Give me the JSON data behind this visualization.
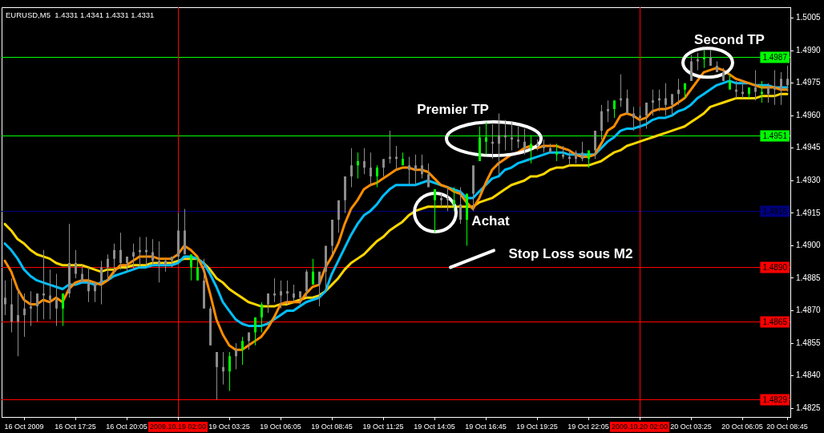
{
  "chart_data": {
    "type": "candlestick",
    "title": "EURUSD,M5  1.4331 1.4341 1.4331 1.4331",
    "categories": [
      null,
      null,
      null,
      "16 Oct 2009",
      null,
      null,
      null,
      null,
      null,
      null,
      null,
      "16 Oct 17:25",
      null,
      null,
      null,
      null,
      null,
      null,
      null,
      "16 Oct 20:05",
      null,
      null,
      null,
      null,
      null,
      null,
      null,
      "2009.10.19 02:00",
      null,
      null,
      null,
      null,
      null,
      null,
      null,
      "19 Oct 03:25",
      null,
      null,
      null,
      null,
      null,
      null,
      null,
      "19 Oct 06:05",
      null,
      null,
      null,
      null,
      null,
      null,
      null,
      "19 Oct 08:45",
      null,
      null,
      null,
      null,
      null,
      null,
      null,
      "19 Oct 11:25",
      null,
      null,
      null,
      null,
      null,
      null,
      null,
      "19 Oct 14:05",
      null,
      null,
      null,
      null,
      null,
      null,
      null,
      "19 Oct 16:45",
      null,
      null,
      null,
      null,
      null,
      null,
      null,
      "19 Oct 19:25",
      null,
      null,
      null,
      null,
      null,
      null,
      null,
      "19 Oct 22:05",
      null,
      null,
      null,
      null,
      null,
      null,
      null,
      "2009.10.20 02:00",
      null,
      null,
      null,
      null,
      null,
      null,
      null,
      "20 Oct 03:25",
      null,
      null,
      null,
      null,
      null,
      null,
      null,
      "20 Oct 06:05",
      null,
      null,
      null,
      null,
      null,
      null,
      "20 Oct 08:45"
    ],
    "ohlc": [
      [
        1.4876,
        1.4884,
        1.4868,
        1.4873
      ],
      [
        1.4873,
        1.4885,
        1.486,
        1.4865
      ],
      [
        1.4868,
        1.488,
        1.4849,
        1.4865
      ],
      [
        1.4871,
        1.4878,
        1.4858,
        1.4868
      ],
      [
        1.4872,
        1.4879,
        1.4863,
        1.4871
      ],
      [
        1.4878,
        1.4878,
        1.4865,
        1.4872
      ],
      [
        1.4878,
        1.4898,
        1.4866,
        1.4877
      ],
      [
        1.4877,
        1.4889,
        1.4866,
        1.4875
      ],
      [
        1.4875,
        1.4887,
        1.4863,
        1.4871
      ],
      [
        1.4871,
        1.4878,
        1.4863,
        1.4878
      ],
      [
        1.4892,
        1.491,
        1.4876,
        1.4878
      ],
      [
        1.4892,
        1.4898,
        1.4885,
        1.4887
      ],
      [
        1.4887,
        1.4891,
        1.4883,
        1.4883
      ],
      [
        1.4883,
        1.489,
        1.4874,
        1.4879
      ],
      [
        1.4883,
        1.4883,
        1.4874,
        1.4879
      ],
      [
        1.489,
        1.4893,
        1.4873,
        1.4883
      ],
      [
        1.4894,
        1.4896,
        1.4884,
        1.489
      ],
      [
        1.4898,
        1.4901,
        1.4887,
        1.4894
      ],
      [
        1.4898,
        1.4906,
        1.4889,
        1.4892
      ],
      [
        1.4895,
        1.4895,
        1.4888,
        1.4892
      ],
      [
        1.4897,
        1.4901,
        1.4889,
        1.4895
      ],
      [
        1.4898,
        1.4904,
        1.489,
        1.4897
      ],
      [
        1.4898,
        1.4904,
        1.4891,
        1.4897
      ],
      [
        1.4897,
        1.4903,
        1.4891,
        1.4893
      ],
      [
        1.4893,
        1.4902,
        1.4883,
        1.4891
      ],
      [
        1.4893,
        1.4894,
        1.4888,
        1.4891
      ],
      [
        1.4895,
        1.4895,
        1.489,
        1.4893
      ],
      [
        1.4907,
        1.4915,
        1.4893,
        1.4895
      ],
      [
        1.4907,
        1.4917,
        1.4896,
        1.4896
      ],
      [
        1.489,
        1.4896,
        1.4884,
        1.4896
      ],
      [
        1.4884,
        1.4895,
        1.4884,
        1.489
      ],
      [
        1.4884,
        1.4894,
        1.4871,
        1.4871
      ],
      [
        1.4871,
        1.4872,
        1.4854,
        1.4854
      ],
      [
        1.4851,
        1.4851,
        1.4829,
        1.4844
      ],
      [
        1.4844,
        1.4851,
        1.4836,
        1.4842
      ],
      [
        1.4842,
        1.4851,
        1.4833,
        1.4849
      ],
      [
        1.4852,
        1.4855,
        1.4843,
        1.4849
      ],
      [
        1.4852,
        1.4858,
        1.4845,
        1.4856
      ],
      [
        1.486,
        1.486,
        1.4852,
        1.4856
      ],
      [
        1.486,
        1.4867,
        1.4854,
        1.4867
      ],
      [
        1.4867,
        1.4874,
        1.486,
        1.4873
      ],
      [
        1.4878,
        1.4878,
        1.4869,
        1.4873
      ],
      [
        1.4878,
        1.4885,
        1.4874,
        1.4877
      ],
      [
        1.4879,
        1.4884,
        1.4871,
        1.4877
      ],
      [
        1.4879,
        1.4884,
        1.4873,
        1.4878
      ],
      [
        1.4878,
        1.4882,
        1.4874,
        1.4876
      ],
      [
        1.4879,
        1.4879,
        1.4873,
        1.4876
      ],
      [
        1.4888,
        1.4889,
        1.4876,
        1.4879
      ],
      [
        1.4882,
        1.4894,
        1.4882,
        1.4888
      ],
      [
        1.4888,
        1.4888,
        1.4872,
        1.4882
      ],
      [
        1.49,
        1.49,
        1.4879,
        1.4888
      ],
      [
        1.4912,
        1.4912,
        1.4896,
        1.49
      ],
      [
        1.4921,
        1.4921,
        1.4906,
        1.4912
      ],
      [
        1.4932,
        1.4932,
        1.4915,
        1.4921
      ],
      [
        1.4937,
        1.4945,
        1.4927,
        1.4932
      ],
      [
        1.4937,
        1.4943,
        1.4931,
        1.4939
      ],
      [
        1.4939,
        1.4945,
        1.4933,
        1.4936
      ],
      [
        1.4936,
        1.4943,
        1.4928,
        1.4932
      ],
      [
        1.4932,
        1.4937,
        1.4927,
        1.4936
      ],
      [
        1.494,
        1.494,
        1.4932,
        1.4936
      ],
      [
        1.4941,
        1.4953,
        1.4938,
        1.494
      ],
      [
        1.4941,
        1.4946,
        1.4935,
        1.494
      ],
      [
        1.4937,
        1.4943,
        1.4937,
        1.494
      ],
      [
        1.4937,
        1.4941,
        1.4928,
        1.4935
      ],
      [
        1.4937,
        1.4942,
        1.4928,
        1.4935
      ],
      [
        1.4937,
        1.4942,
        1.4931,
        1.4933
      ],
      [
        1.4933,
        1.4938,
        1.4927,
        1.4927
      ],
      [
        1.4921,
        1.4926,
        1.4906,
        1.4926
      ],
      [
        1.4922,
        1.4924,
        1.4918,
        1.4921
      ],
      [
        1.4922,
        1.4927,
        1.4916,
        1.4921
      ],
      [
        1.4919,
        1.4927,
        1.4916,
        1.4921
      ],
      [
        1.4919,
        1.4927,
        1.491,
        1.4912
      ],
      [
        1.4912,
        1.4924,
        1.49,
        1.4924
      ],
      [
        1.4937,
        1.4937,
        1.4916,
        1.4924
      ],
      [
        1.4939,
        1.4955,
        1.4939,
        1.495
      ],
      [
        1.4948,
        1.4957,
        1.4942,
        1.495
      ],
      [
        1.4948,
        1.4956,
        1.494,
        1.4947
      ],
      [
        1.4951,
        1.4961,
        1.4933,
        1.4947
      ],
      [
        1.4951,
        1.4958,
        1.4944,
        1.495
      ],
      [
        1.495,
        1.4957,
        1.4944,
        1.4949
      ],
      [
        1.4949,
        1.4955,
        1.4945,
        1.4948
      ],
      [
        1.4948,
        1.4954,
        1.4942,
        1.4945
      ],
      [
        1.4945,
        1.4951,
        1.4938,
        1.4947
      ],
      [
        1.4947,
        1.4949,
        1.4944,
        1.4946
      ],
      [
        1.4946,
        1.4949,
        1.4943,
        1.4945
      ],
      [
        1.4945,
        1.4947,
        1.4943,
        1.4943
      ],
      [
        1.4942,
        1.4947,
        1.4939,
        1.4943
      ],
      [
        1.4942,
        1.4946,
        1.494,
        1.4941
      ],
      [
        1.4941,
        1.4944,
        1.4937,
        1.494
      ],
      [
        1.4943,
        1.4944,
        1.4938,
        1.494
      ],
      [
        1.4943,
        1.4948,
        1.4939,
        1.494
      ],
      [
        1.494,
        1.4944,
        1.4936,
        1.4944
      ],
      [
        1.4953,
        1.4953,
        1.494,
        1.4944
      ],
      [
        1.4962,
        1.4965,
        1.4949,
        1.4953
      ],
      [
        1.4963,
        1.4967,
        1.4957,
        1.4962
      ],
      [
        1.4963,
        1.4967,
        1.4959,
        1.4967
      ],
      [
        1.4968,
        1.4979,
        1.4964,
        1.4967
      ],
      [
        1.4968,
        1.4972,
        1.4961,
        1.4961
      ],
      [
        1.4961,
        1.4964,
        1.4953,
        1.4959
      ],
      [
        1.496,
        1.4964,
        1.4954,
        1.4959
      ],
      [
        1.4966,
        1.4966,
        1.4954,
        1.496
      ],
      [
        1.4967,
        1.4972,
        1.496,
        1.4966
      ],
      [
        1.4968,
        1.4972,
        1.4962,
        1.4967
      ],
      [
        1.4968,
        1.4975,
        1.496,
        1.4965
      ],
      [
        1.497,
        1.497,
        1.496,
        1.4965
      ],
      [
        1.4972,
        1.4977,
        1.4965,
        1.497
      ],
      [
        1.4972,
        1.4975,
        1.4968,
        1.4975
      ],
      [
        1.4985,
        1.4988,
        1.4976,
        1.4976
      ],
      [
        1.4986,
        1.4989,
        1.4981,
        1.4985
      ],
      [
        1.4986,
        1.499,
        1.4982,
        1.4987
      ],
      [
        1.4987,
        1.499,
        1.4983,
        1.4983
      ],
      [
        1.4983,
        1.4985,
        1.498,
        1.498
      ],
      [
        1.498,
        1.4982,
        1.4976,
        1.4976
      ],
      [
        1.4972,
        1.4979,
        1.4972,
        1.4976
      ],
      [
        1.4972,
        1.4976,
        1.4968,
        1.4971
      ],
      [
        1.4971,
        1.4976,
        1.4968,
        1.497
      ],
      [
        1.497,
        1.4973,
        1.4968,
        1.4973
      ],
      [
        1.4973,
        1.4981,
        1.4967,
        1.4971
      ],
      [
        1.497,
        1.4976,
        1.4966,
        1.4971
      ],
      [
        1.4973,
        1.4975,
        1.4966,
        1.497
      ],
      [
        1.4973,
        1.4981,
        1.4965,
        1.4972
      ],
      [
        1.4977,
        1.498,
        1.4965,
        1.4972
      ],
      [
        1.4977,
        1.4983,
        1.4971,
        1.4974
      ]
    ],
    "colors": [
      "#8c8c8c",
      "#8c8c8c",
      "#8c8c8c",
      "#8c8c8c",
      "#8c8c8c",
      "#8c8c8c",
      "#8c8c8c",
      "#8c8c8c",
      "#8c8c8c",
      "#00ff00",
      "#8c8c8c",
      "#8c8c8c",
      "#8c8c8c",
      "#8c8c8c",
      "#8c8c8c",
      "#8c8c8c",
      "#8c8c8c",
      "#8c8c8c",
      "#8c8c8c",
      "#8c8c8c",
      "#8c8c8c",
      "#8c8c8c",
      "#8c8c8c",
      "#8c8c8c",
      "#8c8c8c",
      "#8c8c8c",
      "#8c8c8c",
      "#8c8c8c",
      "#8c8c8c",
      "#00ff00",
      "#00ff00",
      "#8c8c8c",
      "#8c8c8c",
      "#8c8c8c",
      "#8c8c8c",
      "#00ff00",
      "#8c8c8c",
      "#00ff00",
      "#8c8c8c",
      "#00ff00",
      "#00ff00",
      "#8c8c8c",
      "#8c8c8c",
      "#8c8c8c",
      "#8c8c8c",
      "#8c8c8c",
      "#8c8c8c",
      "#8c8c8c",
      "#00ff00",
      "#8c8c8c",
      "#8c8c8c",
      "#8c8c8c",
      "#8c8c8c",
      "#8c8c8c",
      "#8c8c8c",
      "#00ff00",
      "#8c8c8c",
      "#8c8c8c",
      "#00ff00",
      "#8c8c8c",
      "#8c8c8c",
      "#8c8c8c",
      "#00ff00",
      "#8c8c8c",
      "#8c8c8c",
      "#8c8c8c",
      "#8c8c8c",
      "#00ff00",
      "#8c8c8c",
      "#8c8c8c",
      "#00ff00",
      "#8c8c8c",
      "#00ff00",
      "#8c8c8c",
      "#00ff00",
      "#00ff00",
      "#8c8c8c",
      "#8c8c8c",
      "#8c8c8c",
      "#8c8c8c",
      "#8c8c8c",
      "#8c8c8c",
      "#00ff00",
      "#8c8c8c",
      "#8c8c8c",
      "#8c8c8c",
      "#00ff00",
      "#8c8c8c",
      "#8c8c8c",
      "#8c8c8c",
      "#8c8c8c",
      "#00ff00",
      "#8c8c8c",
      "#8c8c8c",
      "#8c8c8c",
      "#00ff00",
      "#8c8c8c",
      "#8c8c8c",
      "#8c8c8c",
      "#8c8c8c",
      "#8c8c8c",
      "#8c8c8c",
      "#8c8c8c",
      "#8c8c8c",
      "#8c8c8c",
      "#8c8c8c",
      "#00ff00",
      "#8c8c8c",
      "#8c8c8c",
      "#00ff00",
      "#8c8c8c",
      "#8c8c8c",
      "#8c8c8c",
      "#00ff00",
      "#8c8c8c",
      "#8c8c8c",
      "#00ff00",
      "#8c8c8c",
      "#00ff00",
      "#8c8c8c",
      "#8c8c8c",
      "#8c8c8c",
      "#8c8c8c"
    ],
    "series": [
      {
        "type": "line",
        "color": "#ff8c00",
        "values": [
          1.4893,
          1.4888,
          1.488,
          1.4875,
          1.4873,
          1.4873,
          1.4875,
          1.4874,
          1.4876,
          1.4874,
          1.488,
          1.4883,
          1.4884,
          1.4884,
          1.4883,
          1.4882,
          1.4884,
          1.4888,
          1.4891,
          1.4891,
          1.4893,
          1.4895,
          1.4895,
          1.4895,
          1.4894,
          1.4894,
          1.4894,
          1.4896,
          1.49,
          1.4898,
          1.4895,
          1.4889,
          1.4878,
          1.4866,
          1.4859,
          1.4854,
          1.4852,
          1.4852,
          1.4854,
          1.4856,
          1.4858,
          1.4862,
          1.4867,
          1.4873,
          1.4874,
          1.4874,
          1.4874,
          1.4878,
          1.4881,
          1.4882,
          1.489,
          1.4895,
          1.4901,
          1.491,
          1.4917,
          1.4921,
          1.4926,
          1.4928,
          1.4929,
          1.4931,
          1.4933,
          1.4935,
          1.4936,
          1.4936,
          1.4935,
          1.4935,
          1.4934,
          1.4931,
          1.4928,
          1.4927,
          1.4925,
          1.4924,
          1.492,
          1.4917,
          1.4922,
          1.4929,
          1.4935,
          1.4938,
          1.494,
          1.4942,
          1.4943,
          1.4945,
          1.4946,
          1.4945,
          1.4946,
          1.4946,
          1.4946,
          1.4945,
          1.4944,
          1.4942,
          1.4941,
          1.4941,
          1.4942,
          1.4947,
          1.4953,
          1.4955,
          1.496,
          1.4961,
          1.496,
          1.4958,
          1.4959,
          1.4962,
          1.4963,
          1.4963,
          1.4964,
          1.4966,
          1.4968,
          1.4972,
          1.4976,
          1.498,
          1.4981,
          1.4982,
          1.4981,
          1.4979,
          1.4977,
          1.4976,
          1.4975,
          1.4974,
          1.4973,
          1.4973,
          1.4973,
          1.4972,
          1.4972
        ]
      },
      {
        "type": "line",
        "color": "#00bfff",
        "values": [
          1.4901,
          1.4898,
          1.4894,
          1.4889,
          1.4886,
          1.4884,
          1.4883,
          1.4882,
          1.4881,
          1.488,
          1.4882,
          1.4882,
          1.4883,
          1.4883,
          1.4882,
          1.4883,
          1.4884,
          1.4886,
          1.4887,
          1.4888,
          1.4889,
          1.489,
          1.489,
          1.4891,
          1.4891,
          1.4891,
          1.4891,
          1.4892,
          1.4895,
          1.4895,
          1.4894,
          1.4892,
          1.4887,
          1.4881,
          1.4874,
          1.487,
          1.4866,
          1.4864,
          1.4863,
          1.4863,
          1.4863,
          1.4864,
          1.4866,
          1.4868,
          1.487,
          1.487,
          1.4872,
          1.4874,
          1.4875,
          1.4876,
          1.4879,
          1.4887,
          1.4893,
          1.4899,
          1.4905,
          1.491,
          1.4914,
          1.4916,
          1.4919,
          1.4923,
          1.4926,
          1.4928,
          1.4928,
          1.4928,
          1.4928,
          1.4929,
          1.493,
          1.4929,
          1.4928,
          1.4927,
          1.4926,
          1.4925,
          1.4922,
          1.4922,
          1.4925,
          1.4928,
          1.4931,
          1.4932,
          1.4935,
          1.4936,
          1.4938,
          1.4939,
          1.494,
          1.4941,
          1.4942,
          1.4943,
          1.4943,
          1.4943,
          1.4942,
          1.4942,
          1.4942,
          1.4942,
          1.4942,
          1.4945,
          1.4948,
          1.495,
          1.4953,
          1.4954,
          1.4954,
          1.4955,
          1.4956,
          1.4958,
          1.4959,
          1.4959,
          1.496,
          1.4962,
          1.4963,
          1.4965,
          1.4968,
          1.497,
          1.4972,
          1.4974,
          1.4975,
          1.4976,
          1.4975,
          1.4975,
          1.4975,
          1.4974,
          1.4974,
          1.4974,
          1.4973,
          1.4973,
          1.4973
        ]
      },
      {
        "type": "line",
        "color": "#ffd700",
        "values": [
          1.491,
          1.4907,
          1.4903,
          1.4901,
          1.4898,
          1.4896,
          1.4895,
          1.4894,
          1.4892,
          1.4891,
          1.4891,
          1.4891,
          1.4891,
          1.489,
          1.4889,
          1.4888,
          1.4889,
          1.4889,
          1.489,
          1.489,
          1.4891,
          1.4891,
          1.4891,
          1.4892,
          1.4892,
          1.4892,
          1.4892,
          1.4893,
          1.4894,
          1.4894,
          1.4894,
          1.4892,
          1.4889,
          1.4885,
          1.4883,
          1.488,
          1.4878,
          1.4876,
          1.4874,
          1.4873,
          1.4872,
          1.4872,
          1.4872,
          1.4873,
          1.4873,
          1.4874,
          1.4875,
          1.4876,
          1.4876,
          1.4877,
          1.4879,
          1.4882,
          1.4885,
          1.4889,
          1.4892,
          1.4894,
          1.4896,
          1.4899,
          1.4902,
          1.4904,
          1.4907,
          1.4909,
          1.4911,
          1.4914,
          1.4916,
          1.4917,
          1.4918,
          1.4918,
          1.4918,
          1.4918,
          1.4918,
          1.4918,
          1.4918,
          1.4918,
          1.492,
          1.4921,
          1.4922,
          1.4924,
          1.4926,
          1.4928,
          1.4929,
          1.493,
          1.4932,
          1.4932,
          1.4933,
          1.4935,
          1.4936,
          1.4936,
          1.4937,
          1.4937,
          1.4937,
          1.4937,
          1.4938,
          1.4939,
          1.4941,
          1.4943,
          1.4944,
          1.4946,
          1.4947,
          1.4948,
          1.4949,
          1.495,
          1.4951,
          1.4952,
          1.4953,
          1.4954,
          1.4955,
          1.4957,
          1.4959,
          1.4961,
          1.4964,
          1.4965,
          1.4966,
          1.4967,
          1.4968,
          1.4968,
          1.4968,
          1.4968,
          1.4969,
          1.4969,
          1.4969,
          1.497,
          1.497
        ]
      }
    ],
    "ylim": [
      1.4821,
      1.501
    ],
    "yticks": [
      1.4825,
      {
        "value": 1.484,
        "label": "1.4840"
      },
      1.4855,
      {
        "value": 1.487,
        "label": "1.4870"
      },
      1.4885,
      {
        "value": 1.49,
        "label": "1.4900"
      },
      1.4915,
      {
        "value": 1.493,
        "label": "1.4930"
      },
      1.4945,
      {
        "value": 1.496,
        "label": "1.4960"
      },
      1.4975,
      {
        "value": 1.499,
        "label": "1.4990"
      },
      1.5005
    ],
    "ref_lines": [
      {
        "axis": "y",
        "value": 1.4987,
        "label": "1.4987",
        "color": "#00ff00"
      },
      {
        "axis": "y",
        "value": 1.4951,
        "label": "1.4951",
        "color": "#00ff00"
      },
      {
        "axis": "y",
        "value": 1.4916,
        "label": "1.4916",
        "color": "#000080"
      },
      {
        "axis": "y",
        "value": 1.489,
        "label": "1.4890",
        "color": "#ff0000"
      },
      {
        "axis": "y",
        "value": 1.4865,
        "label": "1.4865",
        "color": "#ff0000"
      },
      {
        "axis": "y",
        "value": 1.4829,
        "label": "1.4829",
        "color": "#ff0000"
      },
      {
        "axis": "x",
        "value": "2009.10.19 02:00",
        "color": "#ff0000"
      },
      {
        "axis": "x",
        "value": "2009.10.20 02:00",
        "color": "#ff0000"
      }
    ],
    "annotations": [
      "Second TP",
      "Premier TP",
      "Achat",
      {
        "text": "Stop Loss sous M2",
        "y": 1.489
      }
    ]
  }
}
